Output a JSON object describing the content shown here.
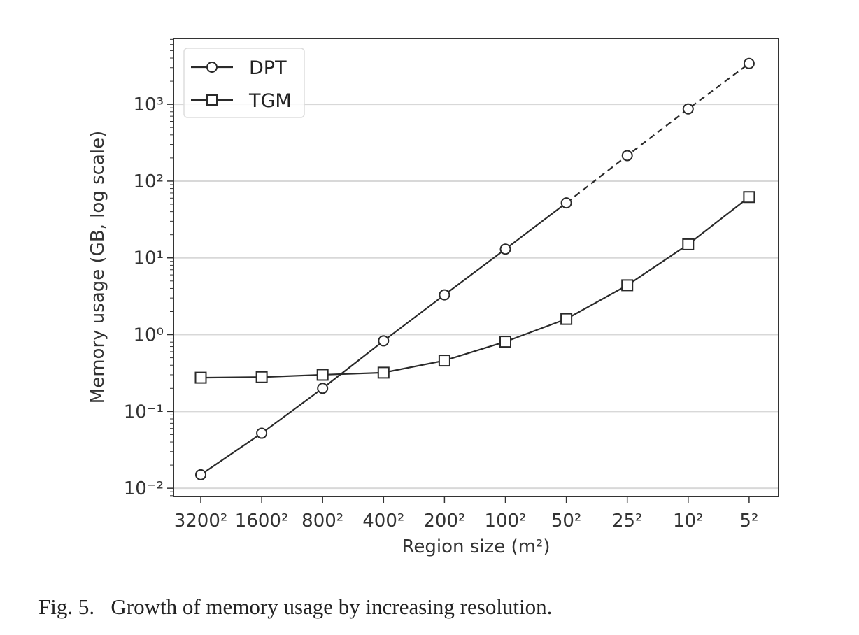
{
  "chart_data": {
    "type": "line",
    "title": "",
    "xlabel": "Region size (m²)",
    "ylabel": "Memory usage (GB, log scale)",
    "yscale": "log",
    "ylim": [
      0.0078,
      7200
    ],
    "yticks": [
      0.01,
      0.1,
      1,
      10,
      100,
      1000
    ],
    "ytick_labels": [
      "10⁻²",
      "10⁻¹",
      "10⁰",
      "10¹",
      "10²",
      "10³"
    ],
    "categories": [
      "3200²",
      "1600²",
      "800²",
      "400²",
      "200²",
      "100²",
      "50²",
      "25²",
      "10²",
      "5²"
    ],
    "grid": "horizontal",
    "legend_position": "top-left",
    "series": [
      {
        "name": "DPT",
        "marker": "circle",
        "values": [
          0.015,
          0.052,
          0.2,
          0.83,
          3.3,
          13,
          52,
          215,
          870,
          3400
        ],
        "dashed_from_index": 6
      },
      {
        "name": "TGM",
        "marker": "square",
        "values": [
          0.275,
          0.28,
          0.3,
          0.32,
          0.46,
          0.81,
          1.6,
          4.4,
          15,
          62
        ]
      }
    ]
  },
  "caption": "Fig. 5.   Growth of memory usage by increasing resolution."
}
